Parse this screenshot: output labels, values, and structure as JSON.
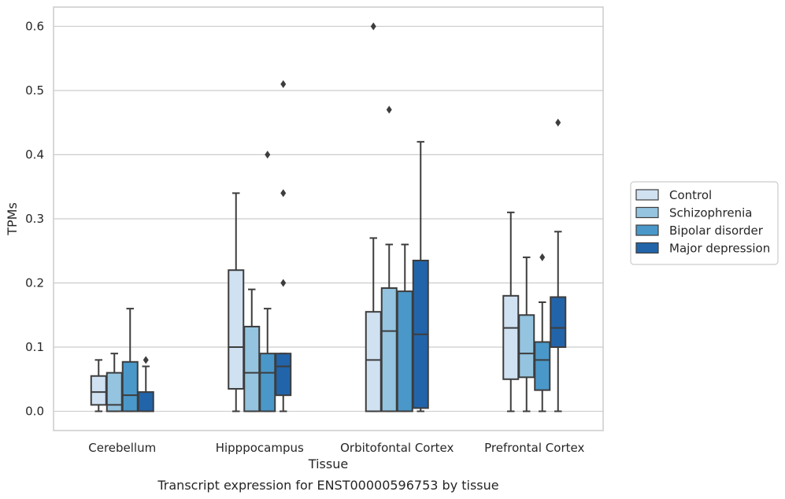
{
  "chart_data": {
    "type": "box",
    "xlabel": "Tissue",
    "ylabel": "TPMs",
    "caption": "Transcript expression for ENST00000596753 by tissue",
    "ylim": [
      -0.03,
      0.63
    ],
    "yticks": [
      0.0,
      0.1,
      0.2,
      0.3,
      0.4,
      0.5,
      0.6
    ],
    "ytick_labels": [
      "0.0",
      "0.1",
      "0.2",
      "0.3",
      "0.4",
      "0.5",
      "0.6"
    ],
    "grid": "horizontal",
    "legend_position": "outside-right",
    "categories": [
      "Cerebellum",
      "Hipppocampus",
      "Orbitofontal Cortex",
      "Prefrontal Cortex"
    ],
    "series": [
      {
        "name": "Control",
        "color": "#d0e1f2",
        "boxes": [
          {
            "whislo": 0.0,
            "q1": 0.01,
            "med": 0.03,
            "q3": 0.055,
            "whishi": 0.08,
            "fliers": []
          },
          {
            "whislo": 0.0,
            "q1": 0.035,
            "med": 0.1,
            "q3": 0.22,
            "whishi": 0.34,
            "fliers": []
          },
          {
            "whislo": 0.0,
            "q1": 0.0,
            "med": 0.08,
            "q3": 0.155,
            "whishi": 0.27,
            "fliers": [
              0.6
            ]
          },
          {
            "whislo": 0.0,
            "q1": 0.05,
            "med": 0.13,
            "q3": 0.18,
            "whishi": 0.31,
            "fliers": []
          }
        ]
      },
      {
        "name": "Schizophrenia",
        "color": "#94c4df",
        "boxes": [
          {
            "whislo": 0.0,
            "q1": 0.0,
            "med": 0.01,
            "q3": 0.06,
            "whishi": 0.09,
            "fliers": []
          },
          {
            "whislo": 0.0,
            "q1": 0.0,
            "med": 0.06,
            "q3": 0.132,
            "whishi": 0.19,
            "fliers": []
          },
          {
            "whislo": 0.0,
            "q1": 0.0,
            "med": 0.125,
            "q3": 0.192,
            "whishi": 0.26,
            "fliers": [
              0.47
            ]
          },
          {
            "whislo": 0.0,
            "q1": 0.053,
            "med": 0.09,
            "q3": 0.15,
            "whishi": 0.24,
            "fliers": []
          }
        ]
      },
      {
        "name": "Bipolar disorder",
        "color": "#4a98c9",
        "boxes": [
          {
            "whislo": 0.0,
            "q1": 0.0,
            "med": 0.025,
            "q3": 0.077,
            "whishi": 0.16,
            "fliers": []
          },
          {
            "whislo": 0.0,
            "q1": 0.0,
            "med": 0.06,
            "q3": 0.09,
            "whishi": 0.16,
            "fliers": [
              0.4
            ]
          },
          {
            "whislo": 0.0,
            "q1": 0.0,
            "med": 0.0,
            "q3": 0.187,
            "whishi": 0.26,
            "fliers": []
          },
          {
            "whislo": 0.0,
            "q1": 0.033,
            "med": 0.08,
            "q3": 0.108,
            "whishi": 0.17,
            "fliers": [
              0.24
            ]
          }
        ]
      },
      {
        "name": "Major depression",
        "color": "#2264a9",
        "boxes": [
          {
            "whislo": 0.0,
            "q1": 0.0,
            "med": 0.0,
            "q3": 0.03,
            "whishi": 0.07,
            "fliers": [
              0.08
            ]
          },
          {
            "whislo": 0.0,
            "q1": 0.025,
            "med": 0.07,
            "q3": 0.09,
            "whishi": 0.09,
            "fliers": [
              0.2,
              0.34,
              0.51
            ]
          },
          {
            "whislo": 0.0,
            "q1": 0.005,
            "med": 0.12,
            "q3": 0.235,
            "whishi": 0.42,
            "fliers": []
          },
          {
            "whislo": 0.0,
            "q1": 0.1,
            "med": 0.13,
            "q3": 0.178,
            "whishi": 0.28,
            "fliers": [
              0.45
            ]
          }
        ]
      }
    ]
  }
}
